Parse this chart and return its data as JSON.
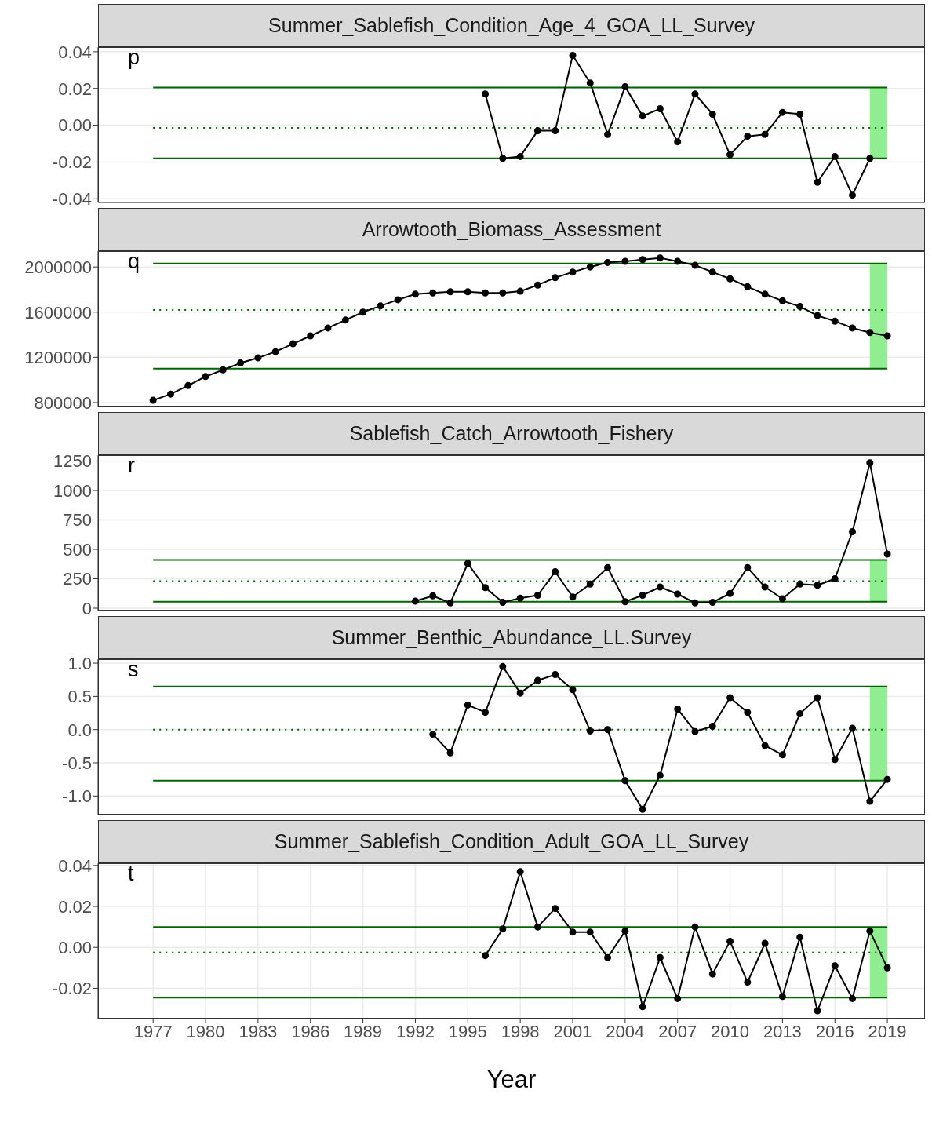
{
  "chart_data": [
    {
      "type": "line",
      "title": "Summer_Sablefish_Condition_Age_4_GOA_LL_Survey",
      "annotations": [
        "p"
      ],
      "x": [
        1996,
        1997,
        1998,
        1999,
        2000,
        2001,
        2002,
        2003,
        2004,
        2005,
        2006,
        2007,
        2008,
        2009,
        2010,
        2011,
        2012,
        2013,
        2014,
        2015,
        2016,
        2017,
        2018
      ],
      "series": [
        {
          "color": "#000000",
          "values": [
            0.017,
            -0.018,
            -0.017,
            -0.003,
            -0.003,
            0.038,
            0.023,
            -0.005,
            0.021,
            0.005,
            0.009,
            -0.009,
            0.017,
            0.006,
            -0.016,
            -0.006,
            -0.005,
            0.007,
            0.006,
            -0.031,
            -0.017,
            -0.038,
            -0.018
          ]
        }
      ],
      "marker": "circle",
      "line_style": "solid",
      "grid": true,
      "tick_labels": "y",
      "xlim": [
        1973.85,
        2021.15
      ],
      "xticks": [
        1977,
        1980,
        1983,
        1986,
        1989,
        1992,
        1995,
        1998,
        2001,
        2004,
        2007,
        2010,
        2013,
        2016,
        2019
      ],
      "ylim": [
        -0.042,
        0.0425
      ],
      "yticks": [
        {
          "value": -0.04,
          "label": "-0.04"
        },
        {
          "value": -0.02,
          "label": "-0.02"
        },
        {
          "value": 0,
          "label": "0.00"
        },
        {
          "value": 0.02,
          "label": "0.02"
        },
        {
          "value": 0.04,
          "label": "0.04"
        }
      ],
      "ref_lines": [
        {
          "axis": "y",
          "value": 0.0205,
          "color": "#006400",
          "line_style": "solid"
        },
        {
          "axis": "y",
          "value": -0.0015,
          "color": "#006400",
          "line_style": "dotted"
        },
        {
          "axis": "y",
          "value": -0.018,
          "color": "#006400",
          "line_style": "solid"
        }
      ],
      "bands": [
        {
          "axis": "x",
          "from": 2018,
          "to": 2019,
          "color": "#90ee90"
        }
      ]
    },
    {
      "type": "line",
      "title": "Arrowtooth_Biomass_Assessment",
      "annotations": [
        "q"
      ],
      "x": [
        1977,
        1978,
        1979,
        1980,
        1981,
        1982,
        1983,
        1984,
        1985,
        1986,
        1987,
        1988,
        1989,
        1990,
        1991,
        1992,
        1993,
        1994,
        1995,
        1996,
        1997,
        1998,
        1999,
        2000,
        2001,
        2002,
        2003,
        2004,
        2005,
        2006,
        2007,
        2008,
        2009,
        2010,
        2011,
        2012,
        2013,
        2014,
        2015,
        2016,
        2017,
        2018,
        2019
      ],
      "series": [
        {
          "color": "#000000",
          "values": [
            820000,
            875000,
            950000,
            1030000,
            1090000,
            1150000,
            1195000,
            1250000,
            1320000,
            1390000,
            1460000,
            1530000,
            1600000,
            1655000,
            1710000,
            1760000,
            1770000,
            1780000,
            1780000,
            1770000,
            1770000,
            1785000,
            1840000,
            1905000,
            1955000,
            2000000,
            2040000,
            2050000,
            2065000,
            2080000,
            2050000,
            2015000,
            1955000,
            1895000,
            1825000,
            1760000,
            1700000,
            1650000,
            1570000,
            1520000,
            1460000,
            1420000,
            1390000
          ]
        }
      ],
      "marker": "circle",
      "line_style": "solid",
      "grid": true,
      "tick_labels": "y",
      "xlim": [
        1973.85,
        2021.15
      ],
      "xticks": [
        1977,
        1980,
        1983,
        1986,
        1989,
        1992,
        1995,
        1998,
        2001,
        2004,
        2007,
        2010,
        2013,
        2016,
        2019
      ],
      "ylim": [
        765000,
        2140000
      ],
      "yticks": [
        800000,
        1200000,
        1600000,
        2000000
      ],
      "ref_lines": [
        {
          "axis": "y",
          "value": 2030000,
          "color": "#006400",
          "line_style": "solid"
        },
        {
          "axis": "y",
          "value": 1620000,
          "color": "#006400",
          "line_style": "dotted"
        },
        {
          "axis": "y",
          "value": 1100000,
          "color": "#006400",
          "line_style": "solid"
        }
      ],
      "bands": [
        {
          "axis": "x",
          "from": 2018,
          "to": 2019,
          "color": "#90ee90"
        }
      ]
    },
    {
      "type": "line",
      "title": "Sablefish_Catch_Arrowtooth_Fishery",
      "annotations": [
        "r"
      ],
      "x": [
        1992,
        1993,
        1994,
        1995,
        1996,
        1997,
        1998,
        1999,
        2000,
        2001,
        2002,
        2003,
        2004,
        2005,
        2006,
        2007,
        2008,
        2009,
        2010,
        2011,
        2012,
        2013,
        2014,
        2015,
        2016,
        2017,
        2018,
        2019
      ],
      "series": [
        {
          "color": "#000000",
          "values": [
            60,
            105,
            45,
            380,
            175,
            50,
            85,
            110,
            310,
            95,
            205,
            345,
            55,
            110,
            180,
            120,
            45,
            50,
            125,
            345,
            180,
            80,
            205,
            195,
            250,
            650,
            1235,
            460
          ]
        }
      ],
      "marker": "circle",
      "line_style": "solid",
      "grid": true,
      "tick_labels": "y",
      "xlim": [
        1973.85,
        2021.15
      ],
      "xticks": [
        1977,
        1980,
        1983,
        1986,
        1989,
        1992,
        1995,
        1998,
        2001,
        2004,
        2007,
        2010,
        2013,
        2016,
        2019
      ],
      "ylim": [
        -20,
        1300
      ],
      "yticks": [
        0,
        250,
        500,
        750,
        1000,
        1250
      ],
      "ref_lines": [
        {
          "axis": "y",
          "value": 410,
          "color": "#006400",
          "line_style": "solid"
        },
        {
          "axis": "y",
          "value": 230,
          "color": "#006400",
          "line_style": "dotted"
        },
        {
          "axis": "y",
          "value": 55,
          "color": "#006400",
          "line_style": "solid"
        }
      ],
      "bands": [
        {
          "axis": "x",
          "from": 2018,
          "to": 2019,
          "color": "#90ee90"
        }
      ]
    },
    {
      "type": "line",
      "title": "Summer_Benthic_Abundance_LL.Survey",
      "annotations": [
        "s"
      ],
      "x": [
        1993,
        1994,
        1995,
        1996,
        1997,
        1998,
        1999,
        2000,
        2001,
        2002,
        2003,
        2004,
        2005,
        2006,
        2007,
        2008,
        2009,
        2010,
        2011,
        2012,
        2013,
        2014,
        2015,
        2016,
        2017,
        2018,
        2019
      ],
      "series": [
        {
          "color": "#000000",
          "values": [
            -0.07,
            -0.35,
            0.37,
            0.26,
            0.95,
            0.55,
            0.74,
            0.83,
            0.6,
            -0.02,
            0.0,
            -0.77,
            -1.2,
            -0.69,
            0.31,
            -0.03,
            0.05,
            0.48,
            0.26,
            -0.24,
            -0.38,
            0.24,
            0.48,
            -0.45,
            0.02,
            -1.08,
            -0.75
          ]
        }
      ],
      "marker": "circle",
      "line_style": "solid",
      "grid": true,
      "tick_labels": "y",
      "xlim": [
        1973.85,
        2021.15
      ],
      "xticks": [
        1977,
        1980,
        1983,
        1986,
        1989,
        1992,
        1995,
        1998,
        2001,
        2004,
        2007,
        2010,
        2013,
        2016,
        2019
      ],
      "ylim": [
        -1.28,
        1.06
      ],
      "yticks": [
        {
          "value": -1,
          "label": "-1.0"
        },
        -0.5,
        {
          "value": 0,
          "label": "0.0"
        },
        0.5,
        {
          "value": 1,
          "label": "1.0"
        }
      ],
      "ref_lines": [
        {
          "axis": "y",
          "value": 0.65,
          "color": "#006400",
          "line_style": "solid"
        },
        {
          "axis": "y",
          "value": 0.0,
          "color": "#006400",
          "line_style": "dotted"
        },
        {
          "axis": "y",
          "value": -0.77,
          "color": "#006400",
          "line_style": "solid"
        }
      ],
      "bands": [
        {
          "axis": "x",
          "from": 2018,
          "to": 2019,
          "color": "#90ee90"
        }
      ]
    },
    {
      "type": "line",
      "title": "Summer_Sablefish_Condition_Adult_GOA_LL_Survey",
      "annotations": [
        "t"
      ],
      "xlabel": "Year",
      "x": [
        1996,
        1997,
        1998,
        1999,
        2000,
        2001,
        2002,
        2003,
        2004,
        2005,
        2006,
        2007,
        2008,
        2009,
        2010,
        2011,
        2012,
        2013,
        2014,
        2015,
        2016,
        2017,
        2018,
        2019
      ],
      "series": [
        {
          "color": "#000000",
          "values": [
            -0.004,
            0.009,
            0.037,
            0.01,
            0.019,
            0.0075,
            0.0075,
            -0.005,
            0.008,
            -0.029,
            -0.005,
            -0.025,
            0.01,
            -0.013,
            0.003,
            -0.017,
            0.002,
            -0.024,
            0.005,
            -0.031,
            -0.009,
            -0.025,
            0.008,
            -0.01
          ]
        }
      ],
      "marker": "circle",
      "line_style": "solid",
      "grid": true,
      "xlim": [
        1973.85,
        2021.15
      ],
      "xticks": [
        1977,
        1980,
        1983,
        1986,
        1989,
        1992,
        1995,
        1998,
        2001,
        2004,
        2007,
        2010,
        2013,
        2016,
        2019
      ],
      "ylim": [
        -0.0348,
        0.0411
      ],
      "yticks": [
        {
          "value": -0.02,
          "label": "-0.02"
        },
        {
          "value": 0,
          "label": "0.00"
        },
        {
          "value": 0.02,
          "label": "0.02"
        },
        {
          "value": 0.04,
          "label": "0.04"
        }
      ],
      "ref_lines": [
        {
          "axis": "y",
          "value": 0.01,
          "color": "#006400",
          "line_style": "solid"
        },
        {
          "axis": "y",
          "value": -0.0025,
          "color": "#006400",
          "line_style": "dotted"
        },
        {
          "axis": "y",
          "value": -0.0245,
          "color": "#006400",
          "line_style": "solid"
        }
      ],
      "bands": [
        {
          "axis": "x",
          "from": 2018,
          "to": 2019,
          "color": "#90ee90"
        }
      ]
    }
  ]
}
